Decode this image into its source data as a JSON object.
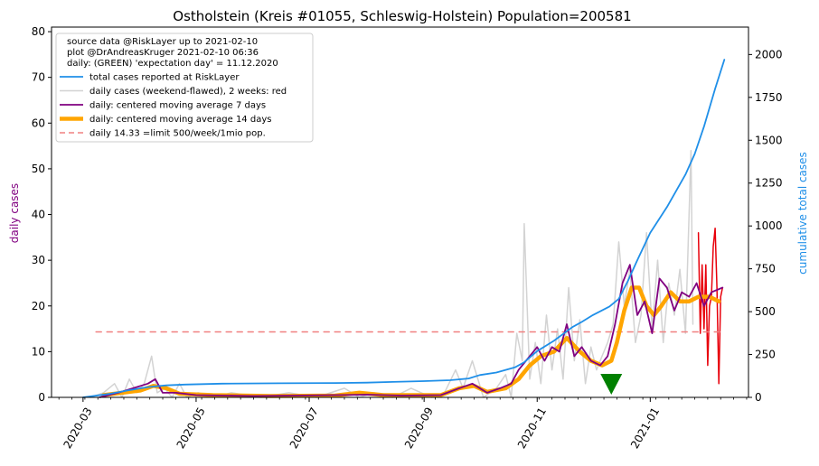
{
  "chart_data": {
    "type": "line",
    "title": "Ostholstein (Kreis #01055, Schleswig-Holstein) Population=200581",
    "ylabel_left": "daily cases",
    "ylabel_right": "cumulative total cases",
    "xlabel": "",
    "left_ylim": [
      0,
      81
    ],
    "right_ylim": [
      0,
      2160
    ],
    "left_yticks": [
      0,
      10,
      20,
      30,
      40,
      50,
      60,
      70,
      80
    ],
    "right_yticks": [
      0,
      250,
      500,
      750,
      1000,
      1250,
      1500,
      1750,
      2000
    ],
    "xlim": [
      "2020-02-13",
      "2021-02-23"
    ],
    "xticks": [
      "2020-03",
      "2020-05",
      "2020-07",
      "2020-09",
      "2020-11",
      "2021-01"
    ],
    "grid": false,
    "legend_position": "top-left",
    "legend_header": [
      "source data @RiskLayer up to 2021-02-10",
      "plot @DrAndreasKruger 2021-02-10 06:36",
      "daily: (GREEN) 'expectation day' = 11.12.2020"
    ],
    "limit_value": 14.33,
    "limit_x_range": [
      "2020-03-08",
      "2021-02-10"
    ],
    "expectation_day": "2020-12-11",
    "series": [
      {
        "name": "total cases reported at RiskLayer",
        "axis": "right",
        "color": "#1f8fe8",
        "style": "solid",
        "points": [
          [
            "2020-03-01",
            0
          ],
          [
            "2020-03-15",
            20
          ],
          [
            "2020-03-25",
            40
          ],
          [
            "2020-04-05",
            60
          ],
          [
            "2020-04-15",
            70
          ],
          [
            "2020-04-25",
            75
          ],
          [
            "2020-05-15",
            80
          ],
          [
            "2020-06-15",
            82
          ],
          [
            "2020-07-15",
            84
          ],
          [
            "2020-08-01",
            86
          ],
          [
            "2020-08-15",
            90
          ],
          [
            "2020-09-01",
            95
          ],
          [
            "2020-09-15",
            100
          ],
          [
            "2020-09-25",
            110
          ],
          [
            "2020-10-01",
            130
          ],
          [
            "2020-10-10",
            145
          ],
          [
            "2020-10-20",
            175
          ],
          [
            "2020-10-25",
            205
          ],
          [
            "2020-11-01",
            270
          ],
          [
            "2020-11-10",
            330
          ],
          [
            "2020-11-20",
            410
          ],
          [
            "2020-11-25",
            440
          ],
          [
            "2020-12-01",
            480
          ],
          [
            "2020-12-10",
            530
          ],
          [
            "2020-12-15",
            575
          ],
          [
            "2020-12-20",
            680
          ],
          [
            "2020-12-25",
            800
          ],
          [
            "2021-01-01",
            960
          ],
          [
            "2021-01-10",
            1110
          ],
          [
            "2021-01-20",
            1300
          ],
          [
            "2021-01-25",
            1420
          ],
          [
            "2021-01-30",
            1580
          ],
          [
            "2021-02-05",
            1800
          ],
          [
            "2021-02-10",
            1970
          ]
        ]
      },
      {
        "name": "daily cases (weekend-flawed), 2 weeks: red",
        "axis": "left",
        "color": "#d3d3d3",
        "recent_color": "#e8000b",
        "style": "solid",
        "points": [
          [
            "2020-03-05",
            0
          ],
          [
            "2020-03-12",
            1
          ],
          [
            "2020-03-18",
            3
          ],
          [
            "2020-03-22",
            0
          ],
          [
            "2020-03-26",
            4
          ],
          [
            "2020-03-30",
            1
          ],
          [
            "2020-04-03",
            3
          ],
          [
            "2020-04-07",
            9
          ],
          [
            "2020-04-10",
            1
          ],
          [
            "2020-04-14",
            2
          ],
          [
            "2020-04-18",
            0
          ],
          [
            "2020-04-22",
            3
          ],
          [
            "2020-04-26",
            0
          ],
          [
            "2020-05-02",
            1
          ],
          [
            "2020-05-10",
            0
          ],
          [
            "2020-05-20",
            1
          ],
          [
            "2020-06-05",
            0
          ],
          [
            "2020-06-20",
            1
          ],
          [
            "2020-07-05",
            0
          ],
          [
            "2020-07-20",
            2
          ],
          [
            "2020-07-28",
            0
          ],
          [
            "2020-08-05",
            1
          ],
          [
            "2020-08-15",
            0
          ],
          [
            "2020-08-25",
            2
          ],
          [
            "2020-09-05",
            0
          ],
          [
            "2020-09-12",
            1
          ],
          [
            "2020-09-18",
            6
          ],
          [
            "2020-09-22",
            2
          ],
          [
            "2020-09-27",
            8
          ],
          [
            "2020-10-03",
            0
          ],
          [
            "2020-10-10",
            2
          ],
          [
            "2020-10-15",
            5
          ],
          [
            "2020-10-18",
            0
          ],
          [
            "2020-10-21",
            14
          ],
          [
            "2020-10-24",
            8
          ],
          [
            "2020-10-25",
            38
          ],
          [
            "2020-10-28",
            4
          ],
          [
            "2020-10-31",
            12
          ],
          [
            "2020-11-03",
            3
          ],
          [
            "2020-11-06",
            18
          ],
          [
            "2020-11-09",
            6
          ],
          [
            "2020-11-12",
            15
          ],
          [
            "2020-11-15",
            4
          ],
          [
            "2020-11-18",
            24
          ],
          [
            "2020-11-21",
            8
          ],
          [
            "2020-11-24",
            17
          ],
          [
            "2020-11-27",
            3
          ],
          [
            "2020-11-30",
            11
          ],
          [
            "2020-12-03",
            6
          ],
          [
            "2020-12-06",
            9
          ],
          [
            "2020-12-09",
            12
          ],
          [
            "2020-12-12",
            16
          ],
          [
            "2020-12-15",
            34
          ],
          [
            "2020-12-18",
            20
          ],
          [
            "2020-12-21",
            28
          ],
          [
            "2020-12-24",
            12
          ],
          [
            "2020-12-27",
            18
          ],
          [
            "2020-12-30",
            36
          ],
          [
            "2021-01-02",
            15
          ],
          [
            "2021-01-05",
            30
          ],
          [
            "2021-01-08",
            12
          ],
          [
            "2021-01-11",
            25
          ],
          [
            "2021-01-14",
            18
          ],
          [
            "2021-01-17",
            28
          ],
          [
            "2021-01-20",
            14
          ],
          [
            "2021-01-23",
            54
          ],
          [
            "2021-01-24",
            16
          ]
        ],
        "recent_points": [
          [
            "2021-01-27",
            36
          ],
          [
            "2021-01-28",
            14
          ],
          [
            "2021-01-29",
            29
          ],
          [
            "2021-01-30",
            15
          ],
          [
            "2021-01-31",
            29
          ],
          [
            "2021-02-01",
            7
          ],
          [
            "2021-02-02",
            20
          ],
          [
            "2021-02-03",
            22
          ],
          [
            "2021-02-04",
            33
          ],
          [
            "2021-02-05",
            37
          ],
          [
            "2021-02-06",
            24
          ],
          [
            "2021-02-07",
            3
          ],
          [
            "2021-02-08",
            22
          ],
          [
            "2021-02-09",
            24
          ]
        ]
      },
      {
        "name": "daily: centered moving average 7 days",
        "axis": "left",
        "color": "#800080",
        "style": "solid",
        "points": [
          [
            "2020-03-10",
            0
          ],
          [
            "2020-03-20",
            1
          ],
          [
            "2020-03-28",
            2
          ],
          [
            "2020-04-05",
            3
          ],
          [
            "2020-04-09",
            4
          ],
          [
            "2020-04-13",
            1
          ],
          [
            "2020-04-20",
            1
          ],
          [
            "2020-05-01",
            0.5
          ],
          [
            "2020-06-01",
            0.3
          ],
          [
            "2020-07-15",
            0.5
          ],
          [
            "2020-08-01",
            0.6
          ],
          [
            "2020-08-20",
            0.4
          ],
          [
            "2020-09-10",
            0.5
          ],
          [
            "2020-09-20",
            2
          ],
          [
            "2020-09-27",
            3
          ],
          [
            "2020-10-05",
            1
          ],
          [
            "2020-10-12",
            2
          ],
          [
            "2020-10-18",
            3
          ],
          [
            "2020-10-22",
            6
          ],
          [
            "2020-10-28",
            9
          ],
          [
            "2020-11-01",
            11
          ],
          [
            "2020-11-05",
            8
          ],
          [
            "2020-11-09",
            11
          ],
          [
            "2020-11-13",
            10
          ],
          [
            "2020-11-17",
            16
          ],
          [
            "2020-11-21",
            9
          ],
          [
            "2020-11-25",
            11
          ],
          [
            "2020-11-30",
            8
          ],
          [
            "2020-12-05",
            7
          ],
          [
            "2020-12-09",
            9
          ],
          [
            "2020-12-13",
            16
          ],
          [
            "2020-12-17",
            25
          ],
          [
            "2020-12-21",
            29
          ],
          [
            "2020-12-25",
            18
          ],
          [
            "2020-12-29",
            21
          ],
          [
            "2021-01-02",
            14
          ],
          [
            "2021-01-06",
            26
          ],
          [
            "2021-01-10",
            24
          ],
          [
            "2021-01-14",
            19
          ],
          [
            "2021-01-18",
            23
          ],
          [
            "2021-01-22",
            22
          ],
          [
            "2021-01-26",
            25
          ],
          [
            "2021-01-30",
            20
          ],
          [
            "2021-02-03",
            23
          ],
          [
            "2021-02-09",
            24
          ]
        ]
      },
      {
        "name": "daily: centered moving average 14 days",
        "axis": "left",
        "color": "#ffa500",
        "style": "solid",
        "points": [
          [
            "2020-03-12",
            0.5
          ],
          [
            "2020-03-22",
            1
          ],
          [
            "2020-04-01",
            1.5
          ],
          [
            "2020-04-08",
            2.5
          ],
          [
            "2020-04-15",
            2
          ],
          [
            "2020-04-22",
            0.8
          ],
          [
            "2020-05-10",
            0.5
          ],
          [
            "2020-06-10",
            0.3
          ],
          [
            "2020-07-15",
            0.4
          ],
          [
            "2020-07-28",
            1
          ],
          [
            "2020-08-10",
            0.5
          ],
          [
            "2020-09-10",
            0.5
          ],
          [
            "2020-09-20",
            2
          ],
          [
            "2020-09-28",
            2.5
          ],
          [
            "2020-10-05",
            1.2
          ],
          [
            "2020-10-15",
            2
          ],
          [
            "2020-10-22",
            4
          ],
          [
            "2020-10-28",
            7
          ],
          [
            "2020-11-03",
            9
          ],
          [
            "2020-11-10",
            10
          ],
          [
            "2020-11-17",
            13
          ],
          [
            "2020-11-24",
            10
          ],
          [
            "2020-11-30",
            8
          ],
          [
            "2020-12-06",
            7
          ],
          [
            "2020-12-11",
            8
          ],
          [
            "2020-12-14",
            12
          ],
          [
            "2020-12-18",
            19
          ],
          [
            "2020-12-22",
            24
          ],
          [
            "2020-12-26",
            24
          ],
          [
            "2020-12-30",
            20
          ],
          [
            "2021-01-03",
            18
          ],
          [
            "2021-01-07",
            20
          ],
          [
            "2021-01-12",
            23
          ],
          [
            "2021-01-17",
            21
          ],
          [
            "2021-01-22",
            21
          ],
          [
            "2021-01-27",
            22
          ],
          [
            "2021-02-02",
            22
          ],
          [
            "2021-02-07",
            21
          ]
        ]
      },
      {
        "name": "daily 14.33 =limit 500/week/1mio pop.",
        "axis": "left",
        "color": "#f08080",
        "style": "dashed",
        "points": [
          [
            "2020-03-08",
            14.33
          ],
          [
            "2021-02-10",
            14.33
          ]
        ]
      }
    ]
  }
}
